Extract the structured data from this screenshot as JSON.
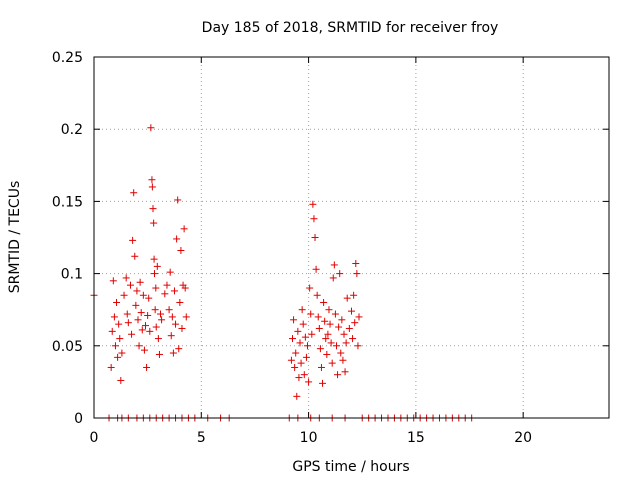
{
  "chart_data": {
    "type": "scatter",
    "title": "Day 185 of 2018, SRMTID for receiver froy",
    "xlabel": "GPS time / hours",
    "ylabel": "SRMTID / TECUs",
    "xlim": [
      0,
      24
    ],
    "ylim": [
      0,
      0.25
    ],
    "xticks": [
      0,
      5,
      10,
      15,
      20
    ],
    "xtick_labels": [
      "0",
      "5",
      "10",
      "15",
      "20"
    ],
    "yticks": [
      0,
      0.05,
      0.1,
      0.15,
      0.2,
      0.25
    ],
    "ytick_labels": [
      "0",
      "0.05",
      "0.1",
      "0.15",
      "0.2",
      "0.25"
    ],
    "grid": true,
    "marker": "+",
    "color": "#e00000",
    "series": [
      {
        "name": "SRMTID",
        "points": [
          [
            0.0,
            0.085
          ],
          [
            0.8,
            0.035
          ],
          [
            0.85,
            0.06
          ],
          [
            0.9,
            0.095
          ],
          [
            0.95,
            0.07
          ],
          [
            1.0,
            0.05
          ],
          [
            1.05,
            0.08
          ],
          [
            1.1,
            0.042
          ],
          [
            1.15,
            0.065
          ],
          [
            1.2,
            0.055
          ],
          [
            1.25,
            0.026
          ],
          [
            1.3,
            0.045
          ],
          [
            1.4,
            0.085
          ],
          [
            1.5,
            0.097
          ],
          [
            1.55,
            0.072
          ],
          [
            1.6,
            0.066
          ],
          [
            1.7,
            0.092
          ],
          [
            1.75,
            0.058
          ],
          [
            1.8,
            0.123
          ],
          [
            1.85,
            0.156
          ],
          [
            1.9,
            0.112
          ],
          [
            1.95,
            0.078
          ],
          [
            2.0,
            0.088
          ],
          [
            2.05,
            0.068
          ],
          [
            2.1,
            0.05
          ],
          [
            2.15,
            0.094
          ],
          [
            2.2,
            0.073
          ],
          [
            2.25,
            0.061
          ],
          [
            2.3,
            0.085
          ],
          [
            2.35,
            0.047
          ],
          [
            2.4,
            0.064
          ],
          [
            2.45,
            0.035
          ],
          [
            2.5,
            0.071
          ],
          [
            2.55,
            0.083
          ],
          [
            2.6,
            0.06
          ],
          [
            2.65,
            0.201
          ],
          [
            2.7,
            0.165
          ],
          [
            2.72,
            0.16
          ],
          [
            2.75,
            0.145
          ],
          [
            2.78,
            0.135
          ],
          [
            2.8,
            0.11
          ],
          [
            2.82,
            0.1
          ],
          [
            2.85,
            0.075
          ],
          [
            2.88,
            0.09
          ],
          [
            2.9,
            0.063
          ],
          [
            2.95,
            0.105
          ],
          [
            3.0,
            0.055
          ],
          [
            3.05,
            0.044
          ],
          [
            3.1,
            0.072
          ],
          [
            3.15,
            0.068
          ],
          [
            3.3,
            0.086
          ],
          [
            3.4,
            0.092
          ],
          [
            3.5,
            0.075
          ],
          [
            3.55,
            0.101
          ],
          [
            3.6,
            0.057
          ],
          [
            3.65,
            0.07
          ],
          [
            3.7,
            0.045
          ],
          [
            3.75,
            0.088
          ],
          [
            3.8,
            0.065
          ],
          [
            3.85,
            0.124
          ],
          [
            3.9,
            0.151
          ],
          [
            3.95,
            0.048
          ],
          [
            4.0,
            0.08
          ],
          [
            4.05,
            0.116
          ],
          [
            4.1,
            0.062
          ],
          [
            4.15,
            0.092
          ],
          [
            4.2,
            0.131
          ],
          [
            4.25,
            0.09
          ],
          [
            4.3,
            0.07
          ],
          [
            9.2,
            0.04
          ],
          [
            9.25,
            0.055
          ],
          [
            9.3,
            0.068
          ],
          [
            9.35,
            0.035
          ],
          [
            9.4,
            0.045
          ],
          [
            9.45,
            0.015
          ],
          [
            9.5,
            0.06
          ],
          [
            9.55,
            0.028
          ],
          [
            9.6,
            0.052
          ],
          [
            9.65,
            0.038
          ],
          [
            9.7,
            0.075
          ],
          [
            9.75,
            0.065
          ],
          [
            9.8,
            0.03
          ],
          [
            9.85,
            0.056
          ],
          [
            9.9,
            0.042
          ],
          [
            9.95,
            0.05
          ],
          [
            10.0,
            0.025
          ],
          [
            10.05,
            0.09
          ],
          [
            10.1,
            0.072
          ],
          [
            10.15,
            0.058
          ],
          [
            10.2,
            0.148
          ],
          [
            10.25,
            0.138
          ],
          [
            10.3,
            0.125
          ],
          [
            10.35,
            0.103
          ],
          [
            10.4,
            0.085
          ],
          [
            10.45,
            0.07
          ],
          [
            10.5,
            0.062
          ],
          [
            10.55,
            0.048
          ],
          [
            10.6,
            0.035
          ],
          [
            10.65,
            0.024
          ],
          [
            10.7,
            0.08
          ],
          [
            10.75,
            0.067
          ],
          [
            10.8,
            0.055
          ],
          [
            10.85,
            0.044
          ],
          [
            10.9,
            0.058
          ],
          [
            10.95,
            0.075
          ],
          [
            11.0,
            0.065
          ],
          [
            11.05,
            0.052
          ],
          [
            11.1,
            0.038
          ],
          [
            11.15,
            0.097
          ],
          [
            11.2,
            0.106
          ],
          [
            11.25,
            0.072
          ],
          [
            11.3,
            0.05
          ],
          [
            11.35,
            0.03
          ],
          [
            11.4,
            0.063
          ],
          [
            11.45,
            0.1
          ],
          [
            11.5,
            0.045
          ],
          [
            11.55,
            0.068
          ],
          [
            11.6,
            0.04
          ],
          [
            11.65,
            0.058
          ],
          [
            11.7,
            0.032
          ],
          [
            11.75,
            0.052
          ],
          [
            11.8,
            0.083
          ],
          [
            11.9,
            0.062
          ],
          [
            12.0,
            0.074
          ],
          [
            12.05,
            0.055
          ],
          [
            12.1,
            0.085
          ],
          [
            12.15,
            0.066
          ],
          [
            12.2,
            0.107
          ],
          [
            12.25,
            0.1
          ],
          [
            12.3,
            0.05
          ],
          [
            12.35,
            0.07
          ],
          [
            0.7,
            0.0
          ],
          [
            1.1,
            0.0
          ],
          [
            1.3,
            0.0
          ],
          [
            1.6,
            0.0
          ],
          [
            2.0,
            0.0
          ],
          [
            2.3,
            0.0
          ],
          [
            2.6,
            0.0
          ],
          [
            2.9,
            0.0
          ],
          [
            3.2,
            0.0
          ],
          [
            3.5,
            0.0
          ],
          [
            3.8,
            0.0
          ],
          [
            4.1,
            0.0
          ],
          [
            4.4,
            0.0
          ],
          [
            4.7,
            0.0
          ],
          [
            5.3,
            0.0
          ],
          [
            5.9,
            0.0
          ],
          [
            6.3,
            0.0
          ],
          [
            9.1,
            0.0
          ],
          [
            9.5,
            0.0
          ],
          [
            10.1,
            0.0
          ],
          [
            10.5,
            0.0
          ],
          [
            11.1,
            0.0
          ],
          [
            11.7,
            0.0
          ],
          [
            12.5,
            0.0
          ],
          [
            12.8,
            0.0
          ],
          [
            13.1,
            0.0
          ],
          [
            13.4,
            0.0
          ],
          [
            13.7,
            0.0
          ],
          [
            14.0,
            0.0
          ],
          [
            14.3,
            0.0
          ],
          [
            14.6,
            0.0
          ],
          [
            14.9,
            0.0
          ],
          [
            15.2,
            0.0
          ],
          [
            15.5,
            0.0
          ],
          [
            15.8,
            0.0
          ],
          [
            16.1,
            0.0
          ],
          [
            16.4,
            0.0
          ],
          [
            16.7,
            0.0
          ],
          [
            17.0,
            0.0
          ],
          [
            17.3,
            0.0
          ],
          [
            17.6,
            0.0
          ]
        ]
      }
    ]
  }
}
